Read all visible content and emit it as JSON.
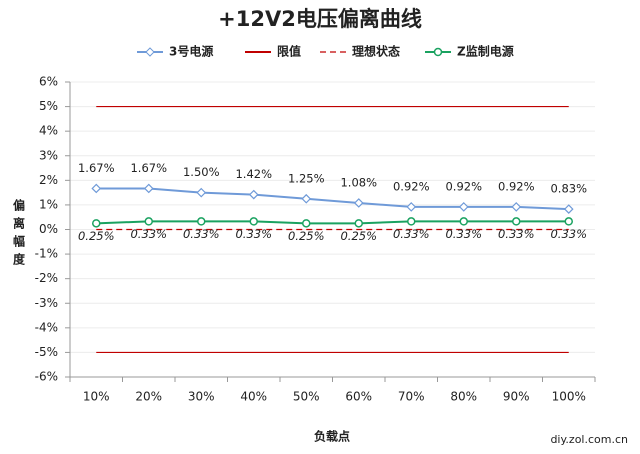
{
  "chart_data": {
    "type": "line",
    "title": "+12V2电压偏离曲线",
    "x_label": "负载点",
    "y_label": "偏离幅度",
    "footer": "diy.zol.com.cn",
    "categories": [
      "10%",
      "20%",
      "30%",
      "40%",
      "50%",
      "60%",
      "70%",
      "80%",
      "90%",
      "100%"
    ],
    "series": [
      {
        "name": "3号电源",
        "color": "#6f9ad8",
        "marker": "diamond",
        "values": [
          1.67,
          1.67,
          1.5,
          1.42,
          1.25,
          1.08,
          0.92,
          0.92,
          0.92,
          0.83
        ],
        "value_labels": [
          "1.67%",
          "1.67%",
          "1.50%",
          "1.42%",
          "1.25%",
          "1.08%",
          "0.92%",
          "0.92%",
          "0.92%",
          "0.83%"
        ]
      },
      {
        "name": "Z监制电源",
        "color": "#1aa260",
        "marker": "circle",
        "values": [
          0.25,
          0.33,
          0.33,
          0.33,
          0.25,
          0.25,
          0.33,
          0.33,
          0.33,
          0.33
        ],
        "value_labels": [
          "0.25%",
          "0.33%",
          "0.33%",
          "0.33%",
          "0.25%",
          "0.25%",
          "0.33%",
          "0.33%",
          "0.33%",
          "0.33%"
        ]
      }
    ],
    "limits": {
      "name": "限值",
      "color": "#c00000",
      "values": [
        5,
        -5
      ]
    },
    "ideal": {
      "name": "理想状态",
      "color": "#c00000",
      "value": 0
    },
    "ylim": [
      -6,
      6
    ],
    "yticks": [
      {
        "value": -6,
        "label": "-6%"
      },
      {
        "value": -5,
        "label": "-5%"
      },
      {
        "value": -4,
        "label": "-4%"
      },
      {
        "value": -3,
        "label": "-3%"
      },
      {
        "value": -2,
        "label": "-2%"
      },
      {
        "value": -1,
        "label": "-1%"
      },
      {
        "value": 0,
        "label": "0%"
      },
      {
        "value": 1,
        "label": "1%"
      },
      {
        "value": 2,
        "label": "2%"
      },
      {
        "value": 3,
        "label": "3%"
      },
      {
        "value": 4,
        "label": "4%"
      },
      {
        "value": 5,
        "label": "5%"
      },
      {
        "value": 6,
        "label": "6%"
      }
    ],
    "grid": true
  }
}
